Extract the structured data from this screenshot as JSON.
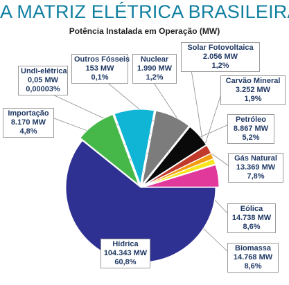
{
  "chart_data": {
    "type": "pie",
    "title": "A MATRIZ ELÉTRICA BRASILEIRA",
    "subtitle": "Potência Instalada em Operação (MW)",
    "slices": [
      {
        "name": "Hídrica",
        "value_text": "104.343 MW",
        "percent_text": "60,8%",
        "value": 104343,
        "color": "#2e3192"
      },
      {
        "name": "Biomassa",
        "value_text": "14.768 MW",
        "percent_text": "8,6%",
        "value": 14768,
        "color": "#46b84a"
      },
      {
        "name": "Eólica",
        "value_text": "14.738 MW",
        "percent_text": "8,6%",
        "value": 14738,
        "color": "#10b4d4"
      },
      {
        "name": "Gás Natural",
        "value_text": "13.369 MW",
        "percent_text": "7,8%",
        "value": 13369,
        "color": "#7c7c7c"
      },
      {
        "name": "Petróleo",
        "value_text": "8.867 MW",
        "percent_text": "5,2%",
        "value": 8867,
        "color": "#0a0a0a"
      },
      {
        "name": "Carvão Mineral",
        "value_text": "3.252 MW",
        "percent_text": "1,9%",
        "value": 3252,
        "color": "#c0392b"
      },
      {
        "name": "Solar Fotovoltaica",
        "value_text": "2.056 MW",
        "percent_text": "1,2%",
        "value": 2056,
        "color": "#f39c12"
      },
      {
        "name": "Nuclear",
        "value_text": "1.990 MW",
        "percent_text": "1,2%",
        "value": 1990,
        "color": "#f7e51d"
      },
      {
        "name": "Outros Fósseis",
        "value_text": "153 MW",
        "percent_text": "0,1%",
        "value": 153,
        "color": "#1a5e3a"
      },
      {
        "name": "Undi-elétrica",
        "value_text": "0,05 MW",
        "percent_text": "0,00003%",
        "value": 0.05,
        "color": "#ffffff"
      },
      {
        "name": "Importação",
        "value_text": "8.170 MW",
        "percent_text": "4,8%",
        "value": 8170,
        "color": "#e0389b"
      }
    ]
  }
}
